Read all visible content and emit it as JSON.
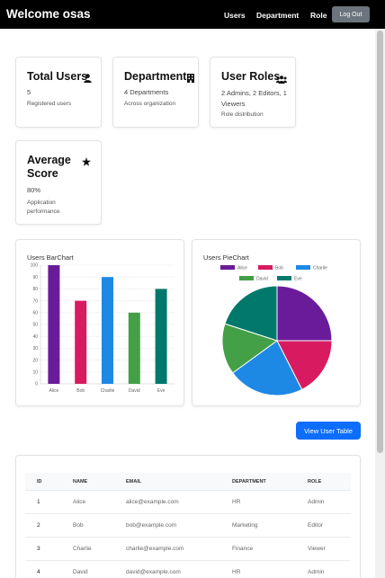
{
  "navbar": {
    "brand": "Welcome osas",
    "links": [
      "Users",
      "Department",
      "Role"
    ],
    "logout_label": "Log Out"
  },
  "cards": [
    {
      "title": "Total Users",
      "value": "5",
      "sub": "Registered users",
      "icon": "user-icon"
    },
    {
      "title": "Departments",
      "value": "4 Departments",
      "sub": "Across organization",
      "icon": "building-icon"
    },
    {
      "title": "User Roles",
      "value": "2 Admins, 2 Editors, 1 Viewers",
      "sub": "Role distribution",
      "icon": "users-icon"
    },
    {
      "title": "Average Score",
      "value": "80%",
      "sub": "Application performance",
      "icon": "star-icon"
    }
  ],
  "bar_chart_title": "Users BarChart",
  "pie_chart_title": "Users PieChart",
  "chart_data": [
    {
      "type": "bar",
      "title": "Users BarChart",
      "categories": [
        "Alice",
        "Bob",
        "Charlie",
        "David",
        "Eve"
      ],
      "values": [
        100,
        70,
        90,
        60,
        80
      ],
      "colors": [
        "#6a1b9a",
        "#d81b60",
        "#1e88e5",
        "#43a047",
        "#00796b"
      ],
      "yticks": [
        0,
        10,
        20,
        30,
        40,
        50,
        60,
        70,
        80,
        90,
        100
      ],
      "ylim": [
        0,
        100
      ]
    },
    {
      "type": "pie",
      "title": "Users PieChart",
      "labels": [
        "Alice",
        "Bob",
        "Charlie",
        "David",
        "Eve"
      ],
      "values": [
        100,
        70,
        90,
        60,
        80
      ],
      "colors": [
        "#6a1b9a",
        "#d81b60",
        "#1e88e5",
        "#43a047",
        "#00796b"
      ],
      "legend": "top"
    }
  ],
  "view_button_label": "View User Table",
  "table": {
    "headers": [
      "ID",
      "NAME",
      "EMAIL",
      "DEPARTMENT",
      "ROLE"
    ],
    "rows": [
      [
        "1",
        "Alice",
        "alice@example.com",
        "HR",
        "Admin"
      ],
      [
        "2",
        "Bob",
        "bob@example.com",
        "Marketing",
        "Editor"
      ],
      [
        "3",
        "Charlie",
        "charlie@example.com",
        "Finance",
        "Viewer"
      ],
      [
        "4",
        "David",
        "david@example.com",
        "HR",
        "Admin"
      ]
    ]
  }
}
